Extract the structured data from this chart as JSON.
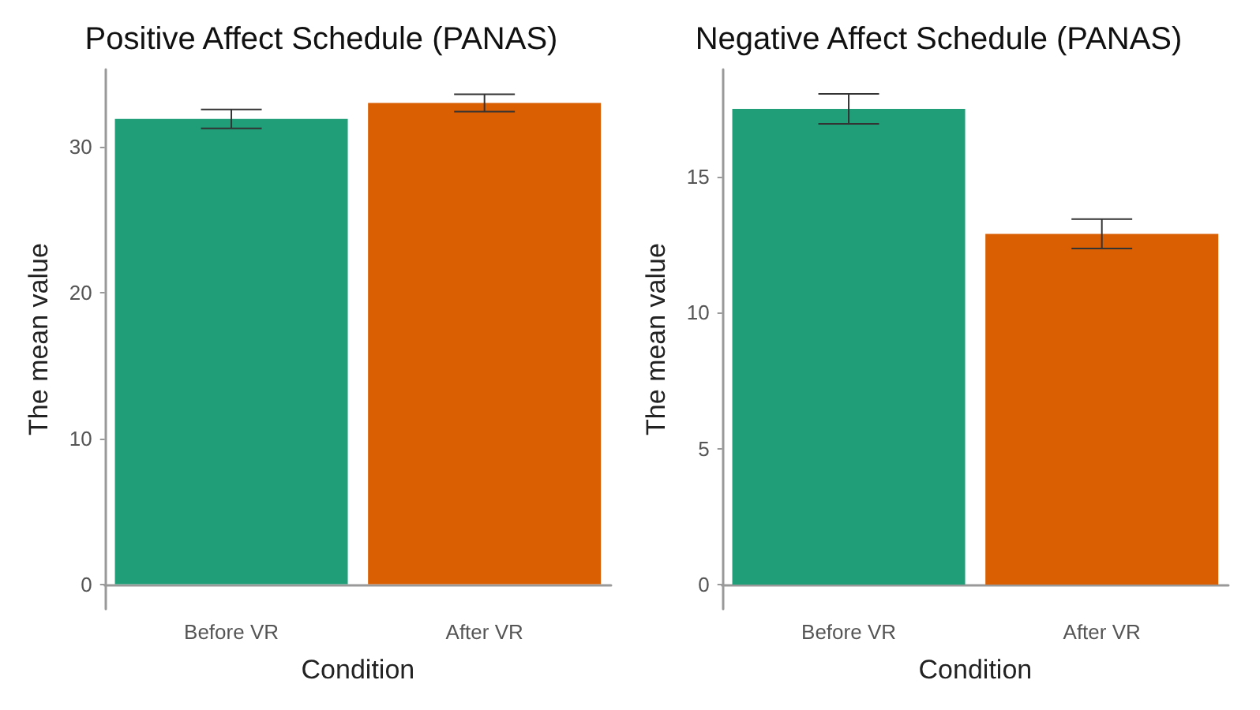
{
  "chart_data": [
    {
      "type": "bar",
      "title": "Positive Affect Schedule (PANAS)",
      "xlabel": "Condition",
      "ylabel": "The mean value",
      "categories": [
        "Before VR",
        "After VR"
      ],
      "values": [
        31.9,
        33.0
      ],
      "errors": [
        0.65,
        0.6
      ],
      "colors": [
        "#1f9e77",
        "#d95f02"
      ],
      "ylim": [
        -1.7,
        35.3
      ],
      "yticks": [
        0,
        10,
        20,
        30
      ],
      "grid": false
    },
    {
      "type": "bar",
      "title": "Negative Affect Schedule (PANAS)",
      "xlabel": "Condition",
      "ylabel": "The mean value",
      "categories": [
        "Before VR",
        "After VR"
      ],
      "values": [
        17.5,
        12.9
      ],
      "errors": [
        0.55,
        0.54
      ],
      "colors": [
        "#1f9e77",
        "#d95f02"
      ],
      "ylim": [
        -0.9,
        18.95
      ],
      "yticks": [
        0,
        5,
        10,
        15
      ],
      "grid": false
    }
  ]
}
